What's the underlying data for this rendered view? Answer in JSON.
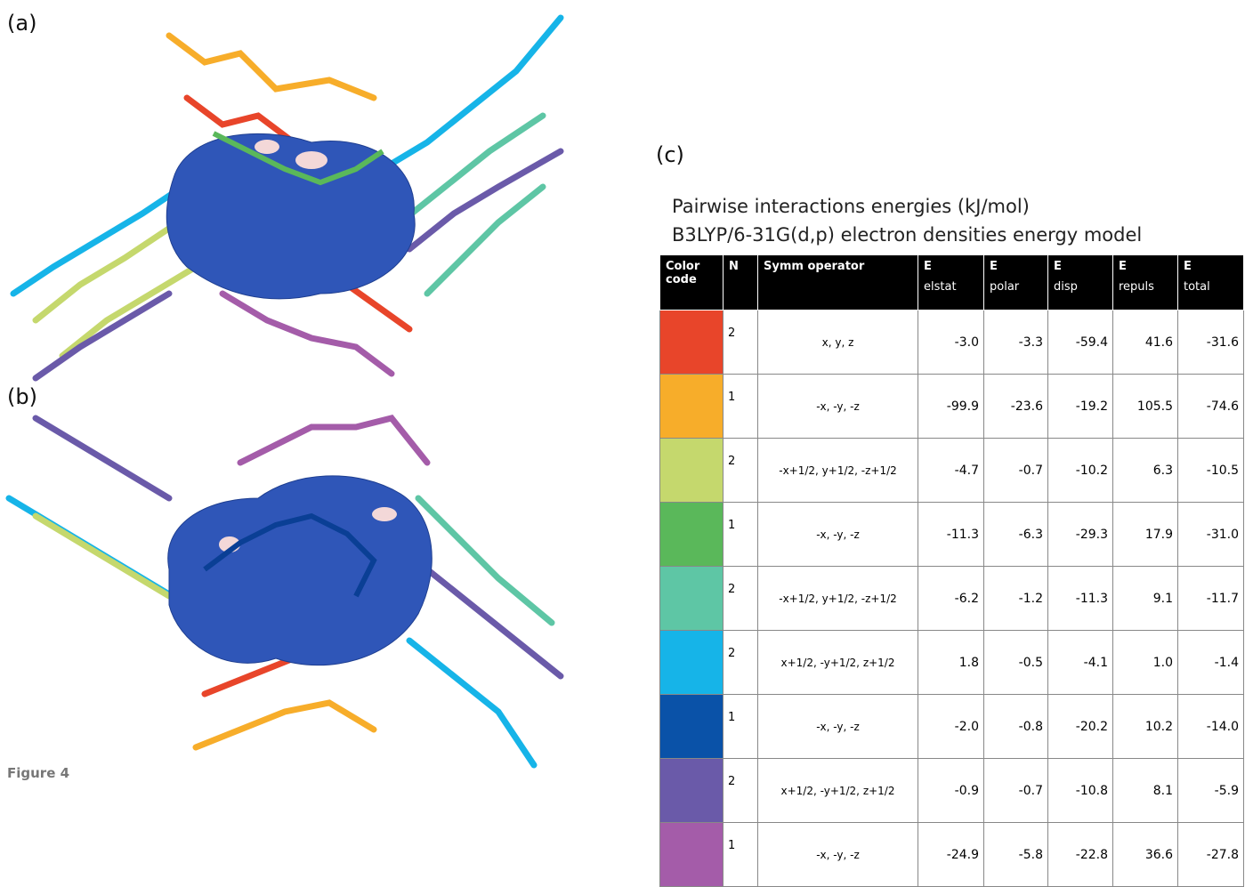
{
  "panels": {
    "a": "(a)",
    "b": "(b)",
    "c": "(c)"
  },
  "table_title": [
    "Pairwise interactions energies (kJ/mol)",
    "B3LYP/6-31G(d,p) electron densities energy model"
  ],
  "table": {
    "header": [
      [
        "Color code"
      ],
      [
        "N"
      ],
      [
        "Symm operator"
      ],
      [
        "E",
        "elstat"
      ],
      [
        "E",
        "polar"
      ],
      [
        "E",
        "disp"
      ],
      [
        "E",
        "repuls"
      ],
      [
        "E",
        "total"
      ]
    ],
    "rows": [
      {
        "color": "#e8452a",
        "cells": [
          "2",
          "x, y, z",
          "-3.0",
          "-3.3",
          "-59.4",
          "41.6",
          "-31.6"
        ]
      },
      {
        "color": "#f7ad2a",
        "cells": [
          "1",
          "-x, -y, -z",
          "-99.9",
          "-23.6",
          "-19.2",
          "105.5",
          "-74.6"
        ]
      },
      {
        "color": "#c5d86d",
        "cells": [
          "2",
          "-x+1/2, y+1/2, -z+1/2",
          "-4.7",
          "-0.7",
          "-10.2",
          "6.3",
          "-10.5"
        ]
      },
      {
        "color": "#5ab85a",
        "cells": [
          "1",
          "-x, -y, -z",
          "-11.3",
          "-6.3",
          "-29.3",
          "17.9",
          "-31.0"
        ]
      },
      {
        "color": "#5ec6a5",
        "cells": [
          "2",
          "-x+1/2, y+1/2, -z+1/2",
          "-6.2",
          "-1.2",
          "-11.3",
          "9.1",
          "-11.7"
        ]
      },
      {
        "color": "#16b4e8",
        "cells": [
          "2",
          "x+1/2, -y+1/2, z+1/2",
          "1.8",
          "-0.5",
          "-4.1",
          "1.0",
          "-1.4"
        ]
      },
      {
        "color": "#0a52a8",
        "cells": [
          "1",
          "-x, -y, -z",
          "-2.0",
          "-0.8",
          "-20.2",
          "10.2",
          "-14.0"
        ]
      },
      {
        "color": "#6a5aa9",
        "cells": [
          "2",
          "x+1/2, -y+1/2, z+1/2",
          "-0.9",
          "-0.7",
          "-10.8",
          "8.1",
          "-5.9"
        ]
      },
      {
        "color": "#a45ca9",
        "cells": [
          "1",
          "-x, -y, -z",
          "-24.9",
          "-5.8",
          "-22.8",
          "36.6",
          "-27.8"
        ]
      }
    ]
  },
  "caption": "Figure 4"
}
